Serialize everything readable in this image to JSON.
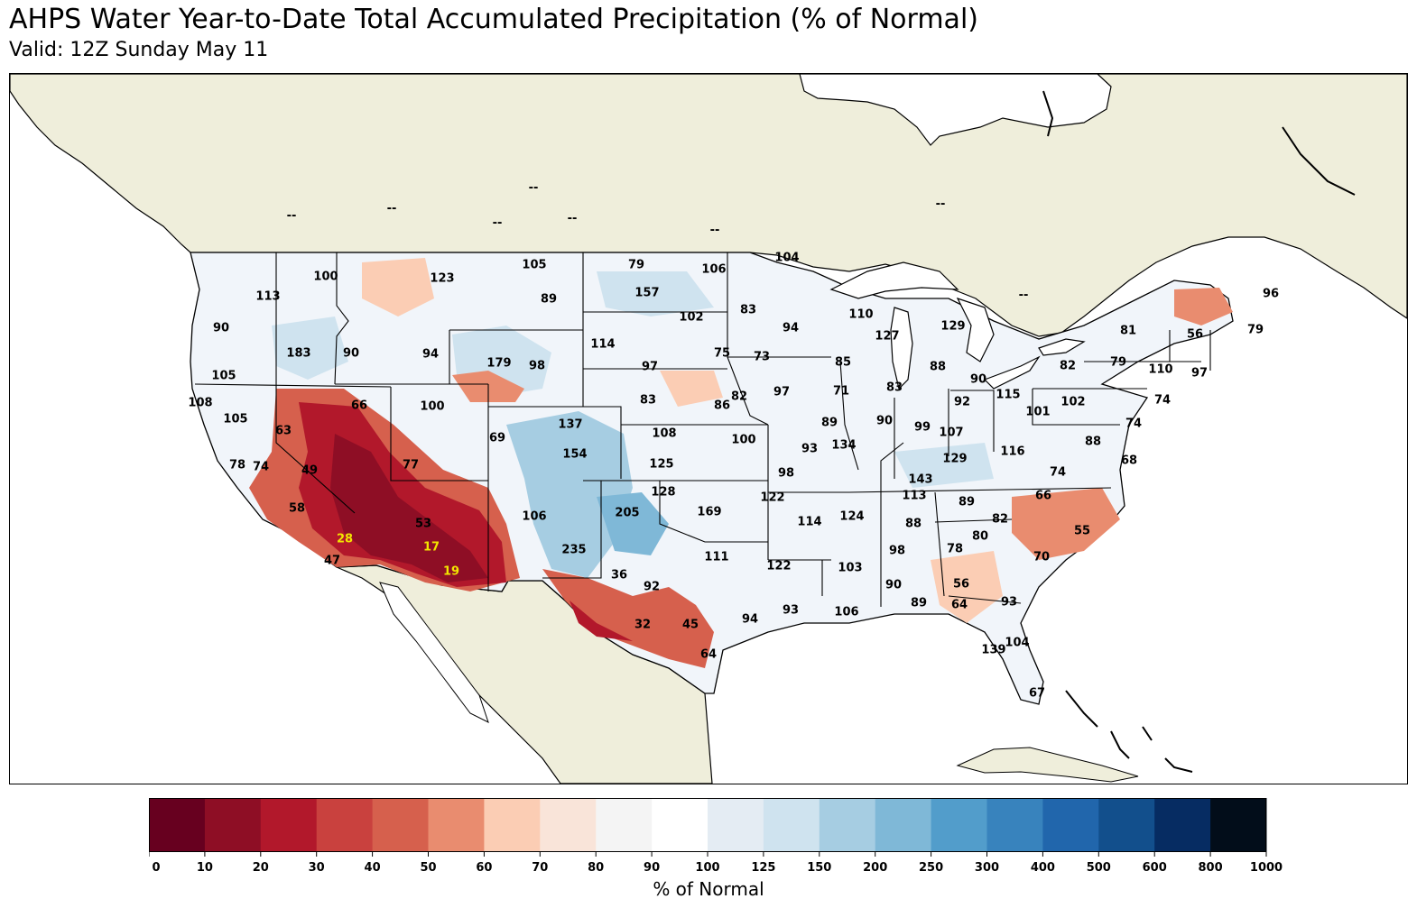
{
  "title": "AHPS Water Year-to-Date Total Accumulated Precipitation (% of Normal)",
  "subtitle": "Valid: 12Z Sunday May 11",
  "colorbar": {
    "label": "% of Normal",
    "ticks": [
      "0",
      "10",
      "20",
      "30",
      "40",
      "50",
      "60",
      "70",
      "80",
      "90",
      "100",
      "125",
      "150",
      "200",
      "250",
      "300",
      "400",
      "500",
      "600",
      "800",
      "1000"
    ],
    "colors": [
      "#67001f",
      "#8e0e25",
      "#b2182b",
      "#c9413e",
      "#d6604d",
      "#e98c6f",
      "#fbcdb4",
      "#f9e4d9",
      "#f4f4f4",
      "#ffffff",
      "#e4ecf3",
      "#cfe3ef",
      "#a6cde2",
      "#7fb8d7",
      "#529dcb",
      "#3883bd",
      "#2166ac",
      "#124f8c",
      "#062c62",
      "#020d1a"
    ]
  },
  "map": {
    "land_color": "#efeedb",
    "ocean_color": "#ffffff",
    "border_color": "#000000",
    "missing_labels": [
      "--",
      "--",
      "--",
      "--",
      "--",
      "--",
      "--",
      "--"
    ],
    "stations": [
      {
        "v": "100"
      },
      {
        "v": "113"
      },
      {
        "v": "123"
      },
      {
        "v": "105"
      },
      {
        "v": "89"
      },
      {
        "v": "79"
      },
      {
        "v": "106"
      },
      {
        "v": "104"
      },
      {
        "v": "157"
      },
      {
        "v": "102"
      },
      {
        "v": "83"
      },
      {
        "v": "94"
      },
      {
        "v": "110"
      },
      {
        "v": "129"
      },
      {
        "v": "96"
      },
      {
        "v": "127"
      },
      {
        "v": "81"
      },
      {
        "v": "56"
      },
      {
        "v": "79"
      },
      {
        "v": "90"
      },
      {
        "v": "183"
      },
      {
        "v": "90"
      },
      {
        "v": "94"
      },
      {
        "v": "179"
      },
      {
        "v": "98"
      },
      {
        "v": "114"
      },
      {
        "v": "97"
      },
      {
        "v": "75"
      },
      {
        "v": "73"
      },
      {
        "v": "85"
      },
      {
        "v": "88"
      },
      {
        "v": "90"
      },
      {
        "v": "82"
      },
      {
        "v": "79"
      },
      {
        "v": "110"
      },
      {
        "v": "97"
      },
      {
        "v": "105"
      },
      {
        "v": "108"
      },
      {
        "v": "105"
      },
      {
        "v": "66"
      },
      {
        "v": "100"
      },
      {
        "v": "83"
      },
      {
        "v": "82"
      },
      {
        "v": "86"
      },
      {
        "v": "97"
      },
      {
        "v": "71"
      },
      {
        "v": "83"
      },
      {
        "v": "92"
      },
      {
        "v": "115"
      },
      {
        "v": "102"
      },
      {
        "v": "74"
      },
      {
        "v": "63"
      },
      {
        "v": "137"
      },
      {
        "v": "108"
      },
      {
        "v": "100"
      },
      {
        "v": "89"
      },
      {
        "v": "90"
      },
      {
        "v": "99"
      },
      {
        "v": "107"
      },
      {
        "v": "101"
      },
      {
        "v": "74"
      },
      {
        "v": "78"
      },
      {
        "v": "74"
      },
      {
        "v": "49"
      },
      {
        "v": "77"
      },
      {
        "v": "69"
      },
      {
        "v": "154"
      },
      {
        "v": "125"
      },
      {
        "v": "93"
      },
      {
        "v": "134"
      },
      {
        "v": "129"
      },
      {
        "v": "116"
      },
      {
        "v": "88"
      },
      {
        "v": "68"
      },
      {
        "v": "98"
      },
      {
        "v": "143"
      },
      {
        "v": "74"
      },
      {
        "v": "58"
      },
      {
        "v": "128"
      },
      {
        "v": "122"
      },
      {
        "v": "113"
      },
      {
        "v": "89"
      },
      {
        "v": "66"
      },
      {
        "v": "106"
      },
      {
        "v": "205"
      },
      {
        "v": "169"
      },
      {
        "v": "114"
      },
      {
        "v": "124"
      },
      {
        "v": "88"
      },
      {
        "v": "82"
      },
      {
        "v": "53"
      },
      {
        "v": "80"
      },
      {
        "v": "55"
      },
      {
        "v": "28"
      },
      {
        "v": "17"
      },
      {
        "v": "235"
      },
      {
        "v": "111"
      },
      {
        "v": "98"
      },
      {
        "v": "78"
      },
      {
        "v": "70"
      },
      {
        "v": "47"
      },
      {
        "v": "19"
      },
      {
        "v": "122"
      },
      {
        "v": "103"
      },
      {
        "v": "36"
      },
      {
        "v": "92"
      },
      {
        "v": "90"
      },
      {
        "v": "56"
      },
      {
        "v": "93"
      },
      {
        "v": "93"
      },
      {
        "v": "106"
      },
      {
        "v": "89"
      },
      {
        "v": "64"
      },
      {
        "v": "32"
      },
      {
        "v": "45"
      },
      {
        "v": "94"
      },
      {
        "v": "104"
      },
      {
        "v": "139"
      },
      {
        "v": "64"
      },
      {
        "v": "67"
      }
    ]
  }
}
